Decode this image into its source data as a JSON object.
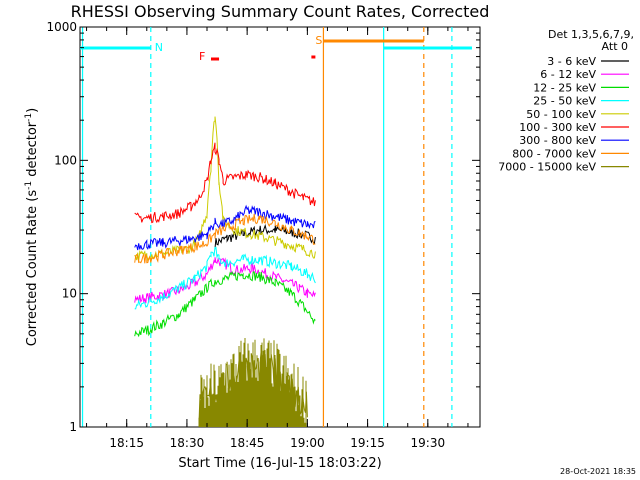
{
  "chart_data": {
    "type": "line",
    "title": "RHESSI Observing Summary Count Rates, Corrected",
    "xlabel": "Start Time (16-Jul-15 18:03:22)",
    "ylabel": "Corrected Count Rate (s",
    "ylabel_sup1": "-1",
    "ylabel_mid": " detector",
    "ylabel_sup2": "-1",
    "ylabel_end": ")",
    "y_scale": "log",
    "ylim": [
      1,
      1000
    ],
    "xlim": [
      "18:03:22",
      "19:43:00"
    ],
    "x_ticks": [
      "18:15",
      "18:30",
      "18:45",
      "19:00",
      "19:15",
      "19:30"
    ],
    "y_ticks": [
      "1",
      "10",
      "100",
      "1000"
    ],
    "legend": {
      "header1": "Det 1,3,5,6,7,9,",
      "header2": "Att 0",
      "placement": "top-right outside",
      "entries": [
        {
          "label": "3 - 6 keV",
          "color": "#000000"
        },
        {
          "label": "6 - 12 keV",
          "color": "#ff00ff"
        },
        {
          "label": "12 - 25 keV",
          "color": "#00dd00"
        },
        {
          "label": "25 - 50 keV",
          "color": "#00ffff"
        },
        {
          "label": "50 - 100 keV",
          "color": "#cccc00"
        },
        {
          "label": "100 - 300 keV",
          "color": "#ff0000"
        },
        {
          "label": "300 - 800 keV",
          "color": "#0000ff"
        },
        {
          "label": "800 - 7000 keV",
          "color": "#ff8800"
        },
        {
          "label": "7000 - 15000 keV",
          "color": "#888800"
        }
      ]
    },
    "series": [
      {
        "name": "3 - 6 keV",
        "color": "#000000",
        "points": [
          [
            "18:37",
            24
          ],
          [
            "18:40",
            26
          ],
          [
            "18:44",
            28
          ],
          [
            "18:48",
            30
          ],
          [
            "18:52",
            30
          ],
          [
            "18:56",
            29
          ],
          [
            "19:00",
            27
          ],
          [
            "19:02",
            26
          ]
        ]
      },
      {
        "name": "6 - 12 keV",
        "color": "#ff00ff",
        "points": [
          [
            "18:17",
            9
          ],
          [
            "18:20",
            9.3
          ],
          [
            "18:24",
            9.8
          ],
          [
            "18:28",
            10.5
          ],
          [
            "18:32",
            12
          ],
          [
            "18:35",
            14
          ],
          [
            "18:37",
            18
          ],
          [
            "18:39",
            17
          ],
          [
            "18:42",
            15
          ],
          [
            "18:46",
            15.5
          ],
          [
            "18:50",
            14
          ],
          [
            "18:54",
            12.5
          ],
          [
            "18:58",
            11
          ],
          [
            "19:00",
            10
          ],
          [
            "19:02",
            9.5
          ]
        ]
      },
      {
        "name": "12 - 25 keV",
        "color": "#00dd00",
        "points": [
          [
            "18:17",
            5
          ],
          [
            "18:20",
            5.3
          ],
          [
            "18:24",
            6
          ],
          [
            "18:28",
            7
          ],
          [
            "18:32",
            9
          ],
          [
            "18:35",
            11
          ],
          [
            "18:37",
            12.5
          ],
          [
            "18:40",
            13
          ],
          [
            "18:44",
            14
          ],
          [
            "18:48",
            13.5
          ],
          [
            "18:52",
            12
          ],
          [
            "18:56",
            10
          ],
          [
            "18:59",
            8
          ],
          [
            "19:02",
            6
          ]
        ]
      },
      {
        "name": "25 - 50 keV",
        "color": "#00ffff",
        "points": [
          [
            "18:17",
            8
          ],
          [
            "18:20",
            8.5
          ],
          [
            "18:24",
            9.5
          ],
          [
            "18:28",
            11
          ],
          [
            "18:32",
            13
          ],
          [
            "18:35",
            16
          ],
          [
            "18:36",
            20
          ],
          [
            "18:37",
            21
          ],
          [
            "18:38",
            18
          ],
          [
            "18:40",
            17
          ],
          [
            "18:44",
            18
          ],
          [
            "18:48",
            18
          ],
          [
            "18:52",
            17
          ],
          [
            "18:56",
            16
          ],
          [
            "19:00",
            14
          ],
          [
            "19:02",
            13
          ]
        ]
      },
      {
        "name": "50 - 100 keV",
        "color": "#cccc00",
        "points": [
          [
            "18:17",
            19
          ],
          [
            "18:20",
            19.5
          ],
          [
            "18:24",
            20
          ],
          [
            "18:28",
            21
          ],
          [
            "18:31",
            22
          ],
          [
            "18:33",
            26
          ],
          [
            "18:35",
            40
          ],
          [
            "18:36",
            90
          ],
          [
            "18:37",
            215
          ],
          [
            "18:38",
            70
          ],
          [
            "18:39",
            35
          ],
          [
            "18:42",
            30
          ],
          [
            "18:46",
            28
          ],
          [
            "18:50",
            26
          ],
          [
            "18:54",
            24
          ],
          [
            "18:58",
            22
          ],
          [
            "19:02",
            20
          ]
        ]
      },
      {
        "name": "100 - 300 keV",
        "color": "#ff0000",
        "points": [
          [
            "18:17",
            37
          ],
          [
            "18:20",
            37
          ],
          [
            "18:24",
            38
          ],
          [
            "18:28",
            40
          ],
          [
            "18:31",
            45
          ],
          [
            "18:33",
            52
          ],
          [
            "18:35",
            70
          ],
          [
            "18:36",
            100
          ],
          [
            "18:37",
            125
          ],
          [
            "18:38",
            100
          ],
          [
            "18:39",
            70
          ],
          [
            "18:42",
            75
          ],
          [
            "18:45",
            78
          ],
          [
            "18:48",
            75
          ],
          [
            "18:52",
            67
          ],
          [
            "18:56",
            58
          ],
          [
            "18:59",
            52
          ],
          [
            "19:02",
            48
          ]
        ]
      },
      {
        "name": "300 - 800 keV",
        "color": "#0000ff",
        "points": [
          [
            "18:17",
            23
          ],
          [
            "18:20",
            23.5
          ],
          [
            "18:24",
            24
          ],
          [
            "18:28",
            25
          ],
          [
            "18:32",
            26
          ],
          [
            "18:35",
            28
          ],
          [
            "18:37",
            34
          ],
          [
            "18:39",
            33
          ],
          [
            "18:42",
            36
          ],
          [
            "18:45",
            42
          ],
          [
            "18:48",
            41
          ],
          [
            "18:52",
            38
          ],
          [
            "18:56",
            35
          ],
          [
            "19:00",
            33
          ],
          [
            "19:02",
            32
          ]
        ]
      },
      {
        "name": "800 - 7000 keV",
        "color": "#ff8800",
        "points": [
          [
            "18:17",
            18
          ],
          [
            "18:20",
            18.5
          ],
          [
            "18:24",
            19.5
          ],
          [
            "18:28",
            21
          ],
          [
            "18:32",
            22.5
          ],
          [
            "18:35",
            24
          ],
          [
            "18:37",
            28
          ],
          [
            "18:40",
            31
          ],
          [
            "18:44",
            35
          ],
          [
            "18:48",
            37
          ],
          [
            "18:52",
            34
          ],
          [
            "18:56",
            30
          ],
          [
            "19:00",
            27
          ],
          [
            "19:02",
            25
          ]
        ]
      },
      {
        "name": "7000 - 15000 keV",
        "color": "#888800",
        "points": [
          [
            "18:33",
            1.3
          ],
          [
            "18:36",
            1.6
          ],
          [
            "18:38",
            1.8
          ],
          [
            "18:40",
            2.2
          ],
          [
            "18:43",
            2.6
          ],
          [
            "18:46",
            2.7
          ],
          [
            "18:49",
            2.7
          ],
          [
            "18:52",
            2.4
          ],
          [
            "18:55",
            2.0
          ],
          [
            "18:58",
            1.6
          ],
          [
            "19:00",
            1.3
          ]
        ]
      }
    ],
    "annotations": [
      {
        "label": "N",
        "color": "#00ffff"
      },
      {
        "label": "F",
        "color": "#ff0000"
      },
      {
        "label": "S",
        "color": "#ff8800"
      }
    ],
    "vertical_markers": [
      {
        "time": "18:04",
        "color": "#00ffff",
        "style": "solid"
      },
      {
        "time": "18:21",
        "color": "#00ffff",
        "style": "dashed"
      },
      {
        "time": "19:04",
        "color": "#ff8800",
        "style": "solid"
      },
      {
        "time": "19:19",
        "color": "#00ffff",
        "style": "solid"
      },
      {
        "time": "19:29",
        "color": "#ff8800",
        "style": "dashed"
      },
      {
        "time": "19:36",
        "color": "#00ffff",
        "style": "dashed"
      }
    ],
    "grid": false
  },
  "timestamp": "28-Oct-2021 18:35"
}
